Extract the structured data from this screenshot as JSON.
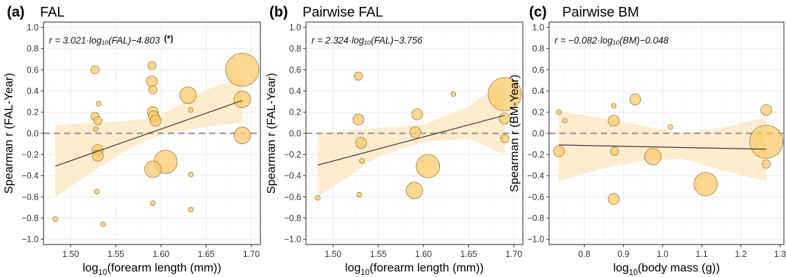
{
  "chart_data": [
    {
      "type": "scatter",
      "panel_label": "(a)",
      "title": "FAL",
      "xlabel": {
        "base": "log",
        "sub": "10",
        "rest": "(forearm length (mm))"
      },
      "ylabel": "Spearman r (FAL-Year)",
      "xlim": [
        1.47,
        1.71
      ],
      "ylim": [
        -1.05,
        1.05
      ],
      "x_ticks": [
        1.5,
        1.55,
        1.6,
        1.65,
        1.7
      ],
      "x_tick_labels": [
        "1.50",
        "1.55",
        "1.60",
        "1.65",
        "1.70"
      ],
      "y_ticks": [
        -1.0,
        -0.8,
        -0.6,
        -0.4,
        -0.2,
        0.0,
        0.2,
        0.4,
        0.6,
        0.8,
        1.0
      ],
      "y_tick_labels": [
        "−1.0",
        "−0.8",
        "−0.6",
        "−0.4",
        "−0.2",
        "0.0",
        "0.2",
        "0.4",
        "0.6",
        "0.8",
        "1.0"
      ],
      "equation": "r = 3.021·log₁₀(FAL)−4.803",
      "equation_note": "(*)",
      "fit": {
        "x0": 1.483,
        "y0": -0.31,
        "x1": 1.69,
        "y1": 0.31
      },
      "ci_band": [
        [
          1.483,
          -0.6,
          0.08
        ],
        [
          1.55,
          -0.22,
          0.11
        ],
        [
          1.58,
          -0.08,
          0.13
        ],
        [
          1.6,
          -0.01,
          0.17
        ],
        [
          1.65,
          0.06,
          0.41
        ],
        [
          1.69,
          0.1,
          0.53
        ]
      ],
      "points": [
        {
          "x": 1.483,
          "y": -0.81,
          "size": 1
        },
        {
          "x": 1.527,
          "y": 0.6,
          "size": 2
        },
        {
          "x": 1.527,
          "y": 0.16,
          "size": 2
        },
        {
          "x": 1.528,
          "y": 0.04,
          "size": 1
        },
        {
          "x": 1.529,
          "y": -0.55,
          "size": 1
        },
        {
          "x": 1.531,
          "y": 0.28,
          "size": 1
        },
        {
          "x": 1.53,
          "y": 0.12,
          "size": 2
        },
        {
          "x": 1.53,
          "y": -0.16,
          "size": 3
        },
        {
          "x": 1.53,
          "y": -0.21,
          "size": 3
        },
        {
          "x": 1.536,
          "y": -0.86,
          "size": 1
        },
        {
          "x": 1.59,
          "y": 0.64,
          "size": 2
        },
        {
          "x": 1.59,
          "y": 0.49,
          "size": 3
        },
        {
          "x": 1.591,
          "y": 0.41,
          "size": 2
        },
        {
          "x": 1.591,
          "y": -0.66,
          "size": 1
        },
        {
          "x": 1.591,
          "y": 0.2,
          "size": 3
        },
        {
          "x": 1.592,
          "y": 0.16,
          "size": 3
        },
        {
          "x": 1.594,
          "y": 0.12,
          "size": 3
        },
        {
          "x": 1.591,
          "y": -0.34,
          "size": 4
        },
        {
          "x": 1.605,
          "y": -0.27,
          "size": 5
        },
        {
          "x": 1.63,
          "y": 0.36,
          "size": 4
        },
        {
          "x": 1.633,
          "y": 0.22,
          "size": 1
        },
        {
          "x": 1.633,
          "y": -0.39,
          "size": 1
        },
        {
          "x": 1.633,
          "y": -0.72,
          "size": 1
        },
        {
          "x": 1.69,
          "y": 0.6,
          "size": 6
        },
        {
          "x": 1.69,
          "y": 0.32,
          "size": 4
        },
        {
          "x": 1.69,
          "y": -0.02,
          "size": 4
        }
      ]
    },
    {
      "type": "scatter",
      "panel_label": "(b)",
      "title": "Pairwise FAL",
      "xlabel": {
        "base": "log",
        "sub": "10",
        "rest": "(forearm length (mm))"
      },
      "ylabel": "Spearman r (FAL-Year)",
      "xlim": [
        1.47,
        1.71
      ],
      "ylim": [
        -1.05,
        1.05
      ],
      "x_ticks": [
        1.5,
        1.55,
        1.6,
        1.65,
        1.7
      ],
      "x_tick_labels": [
        "1.50",
        "1.55",
        "1.60",
        "1.65",
        "1.70"
      ],
      "y_ticks": [
        -1.0,
        -0.8,
        -0.6,
        -0.4,
        -0.2,
        0.0,
        0.2,
        0.4,
        0.6,
        0.8,
        1.0
      ],
      "y_tick_labels": [
        "−1.0",
        "−0.8",
        "−0.6",
        "−0.4",
        "−0.2",
        "0.0",
        "0.2",
        "0.4",
        "0.6",
        "0.8",
        "1.0"
      ],
      "equation": "r = 2.324·log₁₀(FAL)−3.756",
      "equation_note": "",
      "fit": {
        "x0": 1.483,
        "y0": -0.3,
        "x1": 1.69,
        "y1": 0.17
      },
      "ci_band": [
        [
          1.483,
          -0.6,
          0.0
        ],
        [
          1.55,
          -0.22,
          0.05
        ],
        [
          1.6,
          -0.08,
          0.08
        ],
        [
          1.65,
          -0.05,
          0.25
        ],
        [
          1.69,
          -0.2,
          0.5
        ]
      ],
      "points": [
        {
          "x": 1.483,
          "y": -0.61,
          "size": 1
        },
        {
          "x": 1.528,
          "y": 0.54,
          "size": 2
        },
        {
          "x": 1.528,
          "y": 0.13,
          "size": 3
        },
        {
          "x": 1.529,
          "y": -0.58,
          "size": 1
        },
        {
          "x": 1.531,
          "y": -0.09,
          "size": 3
        },
        {
          "x": 1.532,
          "y": -0.26,
          "size": 1
        },
        {
          "x": 1.591,
          "y": 0.01,
          "size": 3
        },
        {
          "x": 1.593,
          "y": 0.18,
          "size": 3
        },
        {
          "x": 1.59,
          "y": -0.54,
          "size": 4
        },
        {
          "x": 1.605,
          "y": -0.31,
          "size": 5
        },
        {
          "x": 1.633,
          "y": 0.37,
          "size": 1
        },
        {
          "x": 1.69,
          "y": 0.37,
          "size": 6
        },
        {
          "x": 1.69,
          "y": 0.14,
          "size": 3
        },
        {
          "x": 1.69,
          "y": -0.05,
          "size": 2
        }
      ]
    },
    {
      "type": "scatter",
      "panel_label": "(c)",
      "title": "Pairwise BM",
      "xlabel": {
        "base": "log",
        "sub": "10",
        "rest": "(body mass (g))"
      },
      "ylabel": "Spearman r (BM-Year)",
      "xlim": [
        0.71,
        1.31
      ],
      "ylim": [
        -1.05,
        1.05
      ],
      "x_ticks": [
        0.8,
        0.9,
        1.0,
        1.1,
        1.2,
        1.3
      ],
      "x_tick_labels": [
        "0.8",
        "0.9",
        "1.0",
        "1.1",
        "1.2",
        "1.3"
      ],
      "y_ticks": [
        -1.0,
        -0.8,
        -0.6,
        -0.4,
        -0.2,
        0.0,
        0.2,
        0.4,
        0.6,
        0.8,
        1.0
      ],
      "y_tick_labels": [
        "−1.0",
        "−0.8",
        "−0.6",
        "−0.4",
        "−0.2",
        "0.0",
        "0.2",
        "0.4",
        "0.6",
        "0.8",
        "1.0"
      ],
      "equation": "r = −0.082·log₁₀(BM)−0.048",
      "equation_note": "",
      "fit": {
        "x0": 0.735,
        "y0": -0.11,
        "x1": 1.265,
        "y1": -0.15
      },
      "ci_band": [
        [
          0.735,
          -0.45,
          0.21
        ],
        [
          0.85,
          -0.33,
          0.14
        ],
        [
          0.95,
          -0.26,
          0.07
        ],
        [
          1.05,
          -0.24,
          0.0
        ],
        [
          1.15,
          -0.35,
          0.05
        ],
        [
          1.265,
          -0.45,
          0.15
        ]
      ],
      "points": [
        {
          "x": 0.735,
          "y": 0.2,
          "size": 1
        },
        {
          "x": 0.735,
          "y": -0.17,
          "size": 3
        },
        {
          "x": 0.75,
          "y": 0.12,
          "size": 1
        },
        {
          "x": 0.875,
          "y": 0.26,
          "size": 1
        },
        {
          "x": 0.875,
          "y": 0.12,
          "size": 3
        },
        {
          "x": 0.877,
          "y": -0.17,
          "size": 2
        },
        {
          "x": 0.875,
          "y": -0.62,
          "size": 3
        },
        {
          "x": 0.93,
          "y": 0.32,
          "size": 3
        },
        {
          "x": 0.975,
          "y": -0.22,
          "size": 4
        },
        {
          "x": 1.02,
          "y": 0.06,
          "size": 1
        },
        {
          "x": 1.11,
          "y": -0.48,
          "size": 5
        },
        {
          "x": 1.265,
          "y": 0.22,
          "size": 3
        },
        {
          "x": 1.265,
          "y": -0.29,
          "size": 2
        },
        {
          "x": 1.265,
          "y": -0.08,
          "size": 6
        }
      ]
    }
  ],
  "colors": {
    "point_fill": "#fbc767",
    "point_stroke": "#9a7a3a",
    "ci_band": "#fde9c4",
    "fit_line": "#333333",
    "zero_line": "#9a9a9a",
    "panel_bg": "#ffffff",
    "grid": "#ebebeb",
    "border": "#333333"
  }
}
